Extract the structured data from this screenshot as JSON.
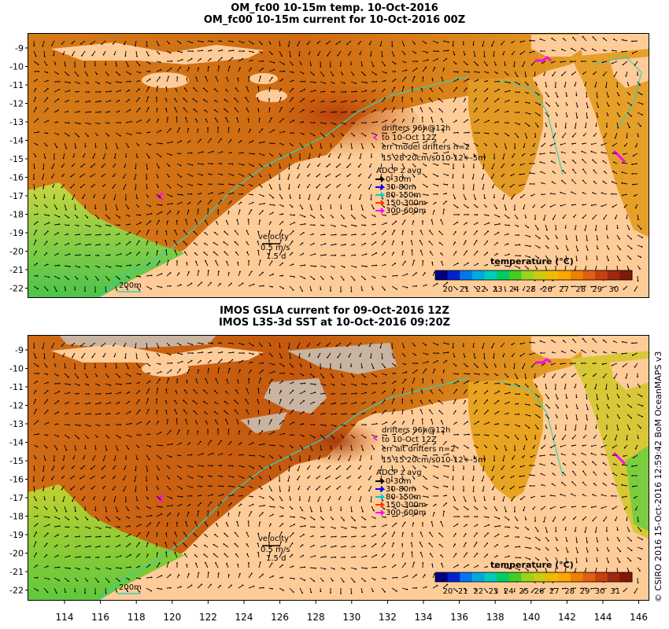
{
  "panels": [
    {
      "title_lines": [
        "OM_fc00 10-15m temp. 10-Oct-2016",
        "OM_fc00 10-15m current for 10-Oct-2016 00Z"
      ],
      "drifters": [
        "drifters 96h@12h",
        "to 10-Oct 12Z",
        "err model drifters n=2",
        "15 28 20cm/s010-12+-5m"
      ],
      "adcp_title": "ADCP z avg",
      "adcp": [
        {
          "label": "0-30m",
          "color": "#000000"
        },
        {
          "label": "30-80m",
          "color": "#0000ff"
        },
        {
          "label": "80-150m",
          "color": "#00cccc"
        },
        {
          "label": "150-300m",
          "color": "#ff3300"
        },
        {
          "label": "300-600m",
          "color": "#ff00ff"
        }
      ],
      "velocity": [
        "velocity",
        "0.5 m/s",
        "1.5 d"
      ],
      "depth_label": "200m",
      "colorbar_title": "temperature (°C)",
      "colorbar_ticks": [
        "20",
        "21",
        "22",
        "23",
        "24",
        "25",
        "26",
        "27",
        "28",
        "29",
        "30"
      ]
    },
    {
      "title_lines": [
        "IMOS GSLA current for 09-Oct-2016 12Z",
        "IMOS L3S-3d SST at 10-Oct-2016 09:20Z"
      ],
      "drifters": [
        "drifters 96h@12h",
        "to 10-Oct 12Z",
        "err alt drifters n=2",
        "15 15 20cm/s010-12+-5m"
      ],
      "adcp_title": "ADCP z avg",
      "adcp": [
        {
          "label": "0-30m",
          "color": "#000000"
        },
        {
          "label": "30-80m",
          "color": "#0000ff"
        },
        {
          "label": "80-150m",
          "color": "#00cccc"
        },
        {
          "label": "150-300m",
          "color": "#ff3300"
        },
        {
          "label": "300-600m",
          "color": "#ff00ff"
        }
      ],
      "velocity": [
        "velocity",
        "0.5 m/s",
        "1.5 d"
      ],
      "depth_label": "200m",
      "colorbar_title": "temperature (°C)",
      "colorbar_ticks": [
        "20",
        "21",
        "22",
        "23",
        "24",
        "25",
        "26",
        "27",
        "28",
        "29",
        "30",
        "31"
      ]
    }
  ],
  "lat_ticks": [
    "-9",
    "-10",
    "-11",
    "-12",
    "-13",
    "-14",
    "-15",
    "-16",
    "-17",
    "-18",
    "-19",
    "-20",
    "-21",
    "-22"
  ],
  "lon_ticks": [
    "114",
    "116",
    "118",
    "120",
    "122",
    "124",
    "126",
    "128",
    "130",
    "132",
    "134",
    "136",
    "138",
    "140",
    "142",
    "144",
    "146"
  ],
  "side_credit": "© CSIRO 2016  15-Oct-2016 12:59:42 BoM OceanMAPS v3",
  "colors": {
    "land": "#fdcc99",
    "ocean_warm": "#e08a1c",
    "ocean_hot": "#c4540c",
    "ocean_cool": "#5cc84a",
    "coast_contour": "#30d0c0"
  }
}
